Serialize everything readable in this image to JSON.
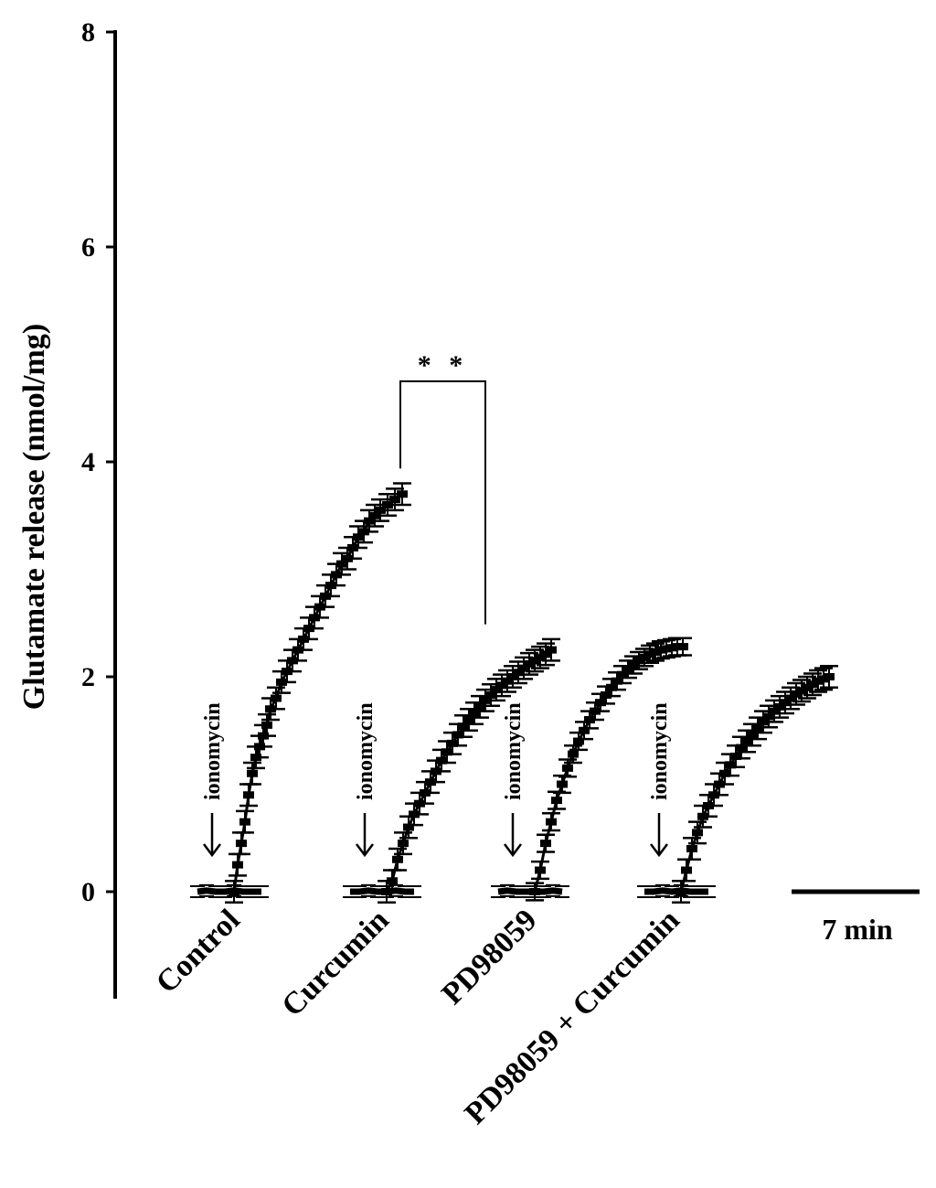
{
  "chart_data": {
    "type": "line",
    "title": "",
    "ylabel": "Glutamate release (nmol/mg)",
    "xlabel": "",
    "ylim": [
      -1,
      8
    ],
    "yticks": [
      0,
      2,
      4,
      6,
      8
    ],
    "grid": false,
    "legend": "none",
    "time_scale": {
      "label": "7 min",
      "minutes": 7
    },
    "stimulus_label": "ionomycin",
    "significance": {
      "label": "* *",
      "between": [
        "Control",
        "Curcumin"
      ]
    },
    "series": [
      {
        "name": "Control",
        "baseline": {
          "t": [
            -2,
            -1.5,
            -1,
            -0.5,
            0,
            0.5,
            1,
            1.5
          ],
          "y": [
            0,
            0.01,
            0,
            0,
            0.01,
            0,
            0,
            0
          ]
        },
        "after": {
          "t": [
            0,
            0.2,
            0.4,
            0.6,
            0.8,
            1.0,
            1.2,
            1.4,
            1.6,
            1.8,
            2.0,
            2.3,
            2.6,
            2.9,
            3.2,
            3.5,
            3.8,
            4.1,
            4.4,
            4.7,
            5.0,
            5.3,
            5.6,
            5.9,
            6.2,
            6.5,
            6.8,
            7.1,
            7.4,
            7.7,
            8.0,
            8.4,
            8.8,
            9.2
          ],
          "y": [
            0.0,
            0.25,
            0.45,
            0.65,
            0.9,
            1.1,
            1.25,
            1.35,
            1.45,
            1.55,
            1.7,
            1.8,
            1.95,
            2.05,
            2.15,
            2.25,
            2.35,
            2.45,
            2.55,
            2.65,
            2.75,
            2.85,
            2.95,
            3.05,
            3.1,
            3.2,
            3.3,
            3.35,
            3.45,
            3.5,
            3.55,
            3.6,
            3.65,
            3.7
          ],
          "err": 0.1
        }
      },
      {
        "name": "Curcumin",
        "baseline": {
          "t": [
            -2,
            -1.5,
            -1,
            -0.5,
            0,
            0.5,
            1,
            1.5
          ],
          "y": [
            0,
            0,
            0.01,
            0,
            0,
            0.01,
            0,
            0
          ]
        },
        "after": {
          "t": [
            0,
            0.3,
            0.6,
            0.9,
            1.2,
            1.5,
            1.8,
            2.1,
            2.4,
            2.7,
            3.0,
            3.3,
            3.6,
            3.9,
            4.2,
            4.5,
            4.8,
            5.1,
            5.4,
            5.7,
            6.0,
            6.3,
            6.6,
            6.9,
            7.2,
            7.5,
            7.8,
            8.1,
            8.4,
            8.7,
            9.0
          ],
          "y": [
            0.0,
            0.1,
            0.3,
            0.45,
            0.6,
            0.72,
            0.82,
            0.92,
            1.02,
            1.12,
            1.22,
            1.3,
            1.38,
            1.46,
            1.54,
            1.6,
            1.66,
            1.72,
            1.78,
            1.83,
            1.88,
            1.92,
            1.96,
            2.0,
            2.04,
            2.08,
            2.12,
            2.15,
            2.18,
            2.21,
            2.25
          ],
          "err": 0.1
        }
      },
      {
        "name": "PD98059",
        "baseline": {
          "t": [
            -2,
            -1.5,
            -1,
            -0.5,
            0,
            0.5,
            1,
            1.5
          ],
          "y": [
            0,
            0.01,
            0,
            0,
            0,
            0,
            0.01,
            0
          ]
        },
        "after": {
          "t": [
            0,
            0.3,
            0.6,
            0.9,
            1.2,
            1.5,
            1.8,
            2.1,
            2.4,
            2.7,
            3.0,
            3.3,
            3.6,
            3.9,
            4.2,
            4.5,
            4.8,
            5.1,
            5.4,
            5.7,
            6.0,
            6.3,
            6.6,
            6.9,
            7.2,
            7.5,
            7.8,
            8.1
          ],
          "y": [
            0.0,
            0.2,
            0.45,
            0.65,
            0.85,
            1.0,
            1.15,
            1.28,
            1.4,
            1.5,
            1.6,
            1.68,
            1.76,
            1.83,
            1.9,
            1.96,
            2.02,
            2.07,
            2.11,
            2.15,
            2.18,
            2.21,
            2.23,
            2.25,
            2.26,
            2.27,
            2.28,
            2.28
          ],
          "err": 0.08
        }
      },
      {
        "name": "PD98059 + Curcumin",
        "baseline": {
          "t": [
            -2,
            -1.5,
            -1,
            -0.5,
            0,
            0.5,
            1,
            1.5
          ],
          "y": [
            0,
            0,
            0.01,
            0,
            0.01,
            0,
            0,
            0
          ]
        },
        "after": {
          "t": [
            0,
            0.3,
            0.6,
            0.9,
            1.2,
            1.5,
            1.8,
            2.1,
            2.4,
            2.7,
            3.0,
            3.3,
            3.6,
            3.9,
            4.2,
            4.5,
            4.8,
            5.1,
            5.4,
            5.7,
            6.0,
            6.3,
            6.6,
            6.9,
            7.2,
            7.5,
            7.8,
            8.1
          ],
          "y": [
            0.0,
            0.2,
            0.4,
            0.55,
            0.7,
            0.8,
            0.9,
            1.0,
            1.1,
            1.18,
            1.26,
            1.34,
            1.4,
            1.46,
            1.52,
            1.58,
            1.63,
            1.68,
            1.72,
            1.76,
            1.8,
            1.84,
            1.87,
            1.9,
            1.93,
            1.96,
            1.98,
            2.0
          ],
          "err": 0.1
        }
      }
    ]
  }
}
